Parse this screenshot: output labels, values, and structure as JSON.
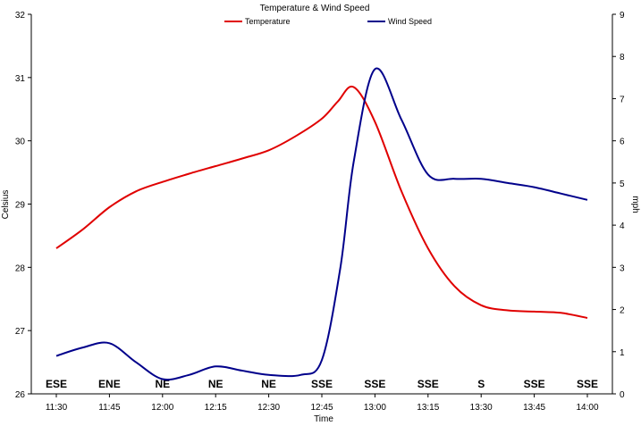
{
  "chart_data": {
    "type": "line",
    "title": "Temperature & Wind Speed",
    "xlabel": "Time",
    "ylabel_left": "Celsius",
    "ylabel_right": "mph",
    "x": [
      "11:30",
      "11:45",
      "12:00",
      "12:15",
      "12:30",
      "12:45",
      "13:00",
      "13:15",
      "13:30",
      "13:45",
      "14:00"
    ],
    "ylim_left": [
      26,
      32
    ],
    "yticks_left": [
      26,
      27,
      28,
      29,
      30,
      31,
      32
    ],
    "ylim_right": [
      0,
      9
    ],
    "yticks_right": [
      0,
      1,
      2,
      3,
      4,
      5,
      6,
      7,
      8,
      9
    ],
    "series": [
      {
        "name": "Temperature",
        "axis": "left",
        "color": "#e00000",
        "x": [
          0,
          0.5,
          1,
          1.5,
          2,
          2.5,
          3,
          3.5,
          4,
          4.5,
          5,
          5.3,
          5.6,
          6,
          6.5,
          7,
          7.5,
          8,
          8.5,
          9,
          9.5,
          10
        ],
        "values": [
          28.3,
          28.6,
          28.95,
          29.2,
          29.35,
          29.48,
          29.6,
          29.72,
          29.85,
          30.07,
          30.35,
          30.62,
          30.85,
          30.3,
          29.2,
          28.3,
          27.7,
          27.4,
          27.32,
          27.3,
          27.28,
          27.2
        ]
      },
      {
        "name": "Wind Speed",
        "axis": "right",
        "color": "#00008b",
        "x": [
          0,
          0.5,
          1,
          1.5,
          2,
          2.5,
          3,
          3.5,
          4,
          4.6,
          5,
          5.35,
          5.6,
          6,
          6.5,
          7,
          7.5,
          8,
          8.5,
          9,
          9.5,
          10
        ],
        "values": [
          0.9,
          1.1,
          1.2,
          0.75,
          0.35,
          0.45,
          0.65,
          0.55,
          0.45,
          0.45,
          0.8,
          3.0,
          5.5,
          7.7,
          6.5,
          5.2,
          5.1,
          5.1,
          5.0,
          4.9,
          4.75,
          4.6
        ]
      }
    ],
    "wind_directions": [
      "ESE",
      "ENE",
      "NE",
      "NE",
      "NE",
      "SSE",
      "SSE",
      "SSE",
      "S",
      "SSE",
      "SSE"
    ],
    "grid": false,
    "legend_position": "top-center"
  }
}
